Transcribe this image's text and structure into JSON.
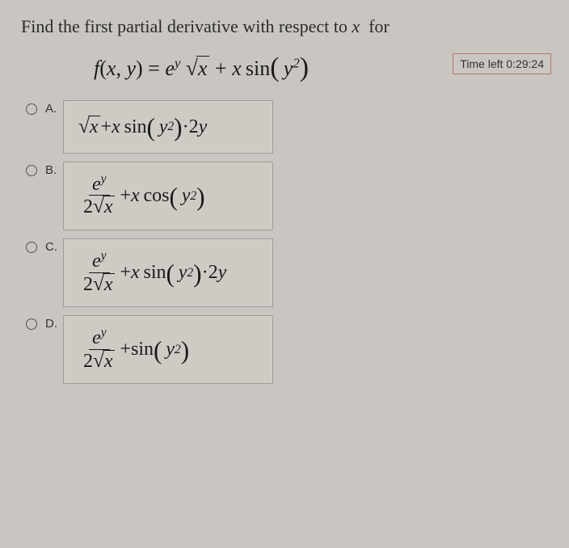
{
  "question": {
    "prefix": "Find the first partial derivative with respect to ",
    "var": "x",
    "suffix": " for"
  },
  "timer": {
    "label": "Time left ",
    "value": "0:29:24"
  },
  "formula": {
    "fn": "f",
    "args_open": "(",
    "x": "x",
    "comma": ",",
    "y": "y",
    "args_close": ")",
    "eq": " = ",
    "e": "e",
    "e_sup": "y",
    "sqrt_x": "x",
    "plus": " + ",
    "x2": "x",
    "sin": "sin",
    "p_open": "(",
    "y2": "y",
    "y2_sup": "2",
    "p_close": ")"
  },
  "options": {
    "A": {
      "label": "A.",
      "sqrt_x": "x",
      "plus": " + ",
      "x": "x",
      "sin": "sin",
      "open": "(",
      "y": "y",
      "ysup": "2",
      "close": ")",
      "dot": "·",
      "two_y": "2",
      "y_tail": "y"
    },
    "B": {
      "label": "B.",
      "num_e": "e",
      "num_sup": "y",
      "den_two": "2",
      "den_sqrt_x": "x",
      "plus": " + ",
      "x": "x",
      "cos": "cos",
      "open": "(",
      "y": "y",
      "ysup": "2",
      "close": ")"
    },
    "C": {
      "label": "C.",
      "num_e": "e",
      "num_sup": "y",
      "den_two": "2",
      "den_sqrt_x": "x",
      "plus": " + ",
      "x": "x",
      "sin": "sin",
      "open": "(",
      "y": "y",
      "ysup": "2",
      "close": ")",
      "dot": "·",
      "two_y": "2",
      "y_tail": "y"
    },
    "D": {
      "label": "D.",
      "num_e": "e",
      "num_sup": "y",
      "den_two": "2",
      "den_sqrt_x": "x",
      "plus": " + ",
      "sin": "sin",
      "open": "(",
      "y": "y",
      "ysup": "2",
      "close": ")"
    }
  },
  "colors": {
    "background": "#c9c6c1",
    "box_border": "#9e9b95",
    "timer_border": "#b5776a",
    "text": "#1a1a1a"
  }
}
